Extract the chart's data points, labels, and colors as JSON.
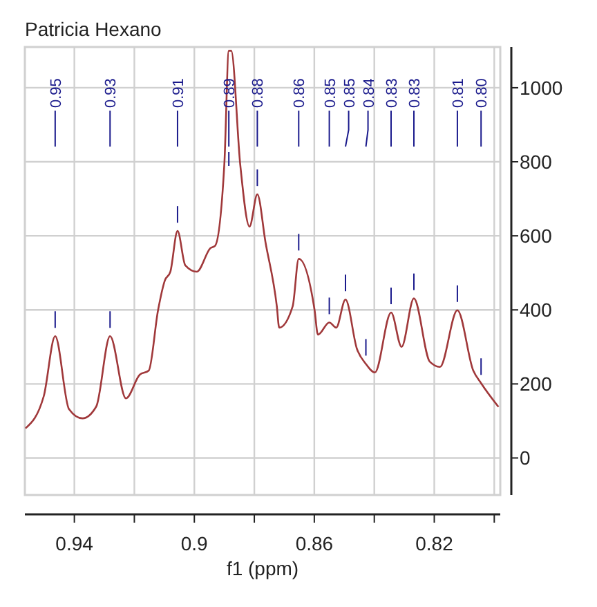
{
  "chart_data": {
    "type": "line",
    "title": "Patricia Hexano",
    "xlabel": "f1 (ppm)",
    "x": [
      0.9563,
      0.9502,
      0.9464,
      0.9418,
      0.9373,
      0.9327,
      0.9281,
      0.9228,
      0.9182,
      0.9152,
      0.9121,
      0.9098,
      0.908,
      0.9056,
      0.903,
      0.8992,
      0.8946,
      0.8931,
      0.89,
      0.8885,
      0.8877,
      0.8847,
      0.8816,
      0.879,
      0.8763,
      0.8725,
      0.8717,
      0.8672,
      0.8652,
      0.8599,
      0.8588,
      0.855,
      0.8527,
      0.8496,
      0.8458,
      0.8428,
      0.8398,
      0.8344,
      0.8309,
      0.8268,
      0.8215,
      0.8181,
      0.8123,
      0.807,
      0.8044,
      0.7986
    ],
    "series": [
      {
        "color": "#a0383a",
        "values": [
          80,
          167,
          329,
          132,
          107,
          139,
          329,
          161,
          225,
          236,
          399,
          480,
          503,
          613,
          520,
          503,
          567,
          573,
          793,
          1100,
          1100,
          793,
          625,
          712,
          584,
          410,
          352,
          410,
          538,
          399,
          333,
          366,
          352,
          428,
          295,
          254,
          231,
          393,
          300,
          431,
          260,
          246,
          399,
          236,
          202,
          138
        ]
      }
    ],
    "xlim": [
      0.9565,
      0.798
    ],
    "ylim": [
      -100,
      1110
    ],
    "xticks": [
      0.94,
      {
        "value": 0.92,
        "label": null
      },
      0.9,
      {
        "value": 0.88,
        "label": null
      },
      0.86,
      {
        "value": 0.84,
        "label": null
      },
      0.82,
      {
        "value": 0.8,
        "label": null
      }
    ],
    "yticks": [
      0,
      200,
      400,
      600,
      800,
      1000
    ],
    "grid": true,
    "marker": "none",
    "line_style": "solid",
    "annotations": [
      {
        "text": "0.95",
        "x": 0.9464
      },
      {
        "text": "0.93",
        "x": 0.9281
      },
      {
        "text": "0.91",
        "x": 0.9056
      },
      {
        "text": "0.89",
        "x": 0.8885
      },
      {
        "text": "0.88",
        "x": 0.879
      },
      {
        "text": "0.86",
        "x": 0.8652
      },
      {
        "text": "0.85",
        "x": 0.855
      },
      {
        "text": "0.85",
        "x": 0.8496
      },
      {
        "text": "0.84",
        "x": 0.8428
      },
      {
        "text": "0.83",
        "x": 0.8344
      },
      {
        "text": "0.83",
        "x": 0.8268
      },
      {
        "text": "0.81",
        "x": 0.8123
      },
      {
        "text": "0.80",
        "x": 0.8044
      }
    ]
  }
}
